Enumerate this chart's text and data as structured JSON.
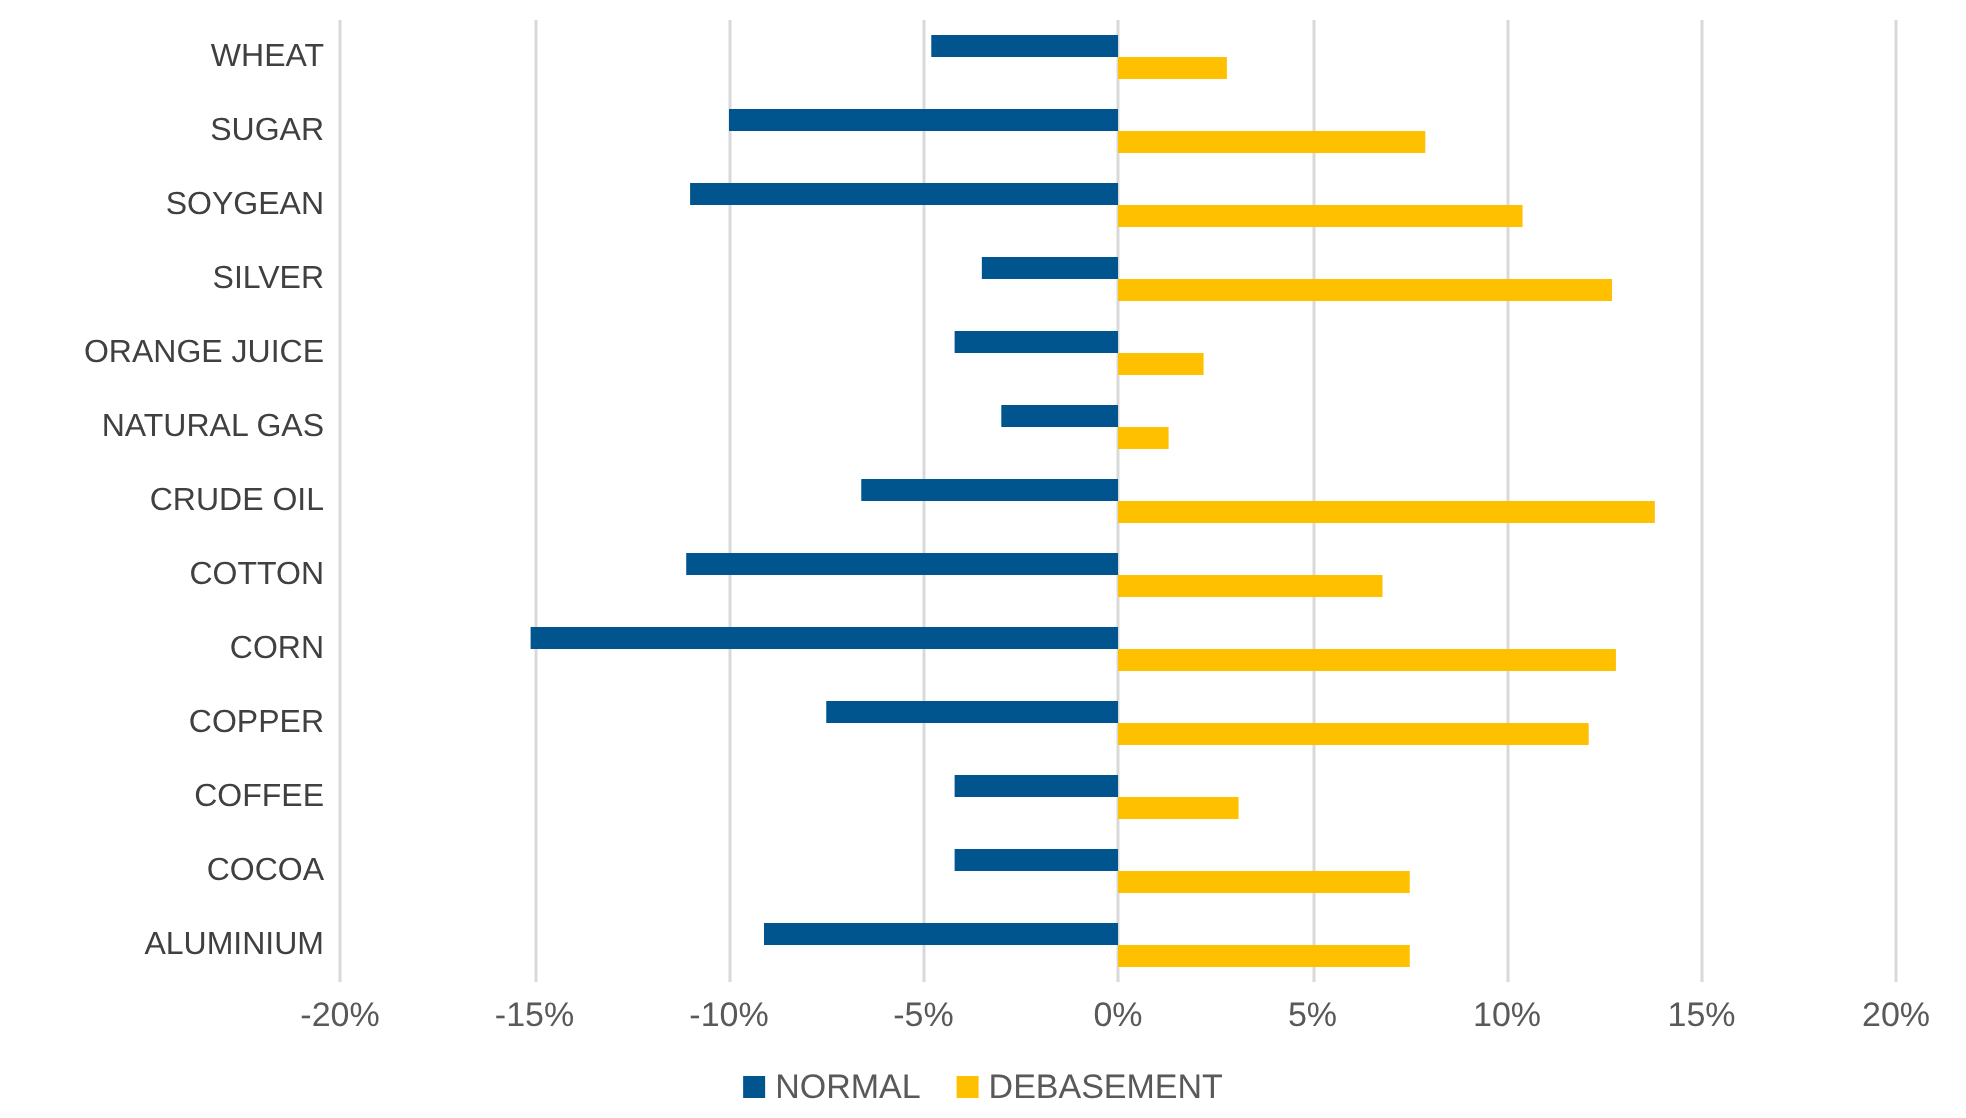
{
  "chart_data": {
    "type": "bar",
    "orientation": "horizontal",
    "categories": [
      "WHEAT",
      "SUGAR",
      "SOYGEAN",
      "SILVER",
      "ORANGE JUICE",
      "NATURAL GAS",
      "CRUDE OIL",
      "COTTON",
      "CORN",
      "COPPER",
      "COFFEE",
      "COCOA",
      "ALUMINIUM"
    ],
    "series": [
      {
        "name": "NORMAL",
        "color": "#00558f",
        "values": [
          -4.8,
          -10.0,
          -11.0,
          -3.5,
          -4.2,
          -3.0,
          -6.6,
          -11.1,
          -15.1,
          -7.5,
          -4.2,
          -4.2,
          -9.1
        ]
      },
      {
        "name": "DEBASEMENT",
        "color": "#ffc000",
        "values": [
          2.8,
          7.9,
          10.4,
          12.7,
          2.2,
          1.3,
          13.8,
          6.8,
          12.8,
          12.1,
          3.1,
          7.5,
          7.5
        ]
      }
    ],
    "xlim": [
      -20,
      20
    ],
    "xticks": [
      {
        "value": -20,
        "label": "-20%"
      },
      {
        "value": -15,
        "label": "-15%"
      },
      {
        "value": -10,
        "label": "-10%"
      },
      {
        "value": -5,
        "label": "-5%"
      },
      {
        "value": 0,
        "label": "0%"
      },
      {
        "value": 5,
        "label": "5%"
      },
      {
        "value": 10,
        "label": "10%"
      },
      {
        "value": 15,
        "label": "15%"
      },
      {
        "value": 20,
        "label": "20%"
      }
    ],
    "grid": "x",
    "legend": "bottom"
  }
}
